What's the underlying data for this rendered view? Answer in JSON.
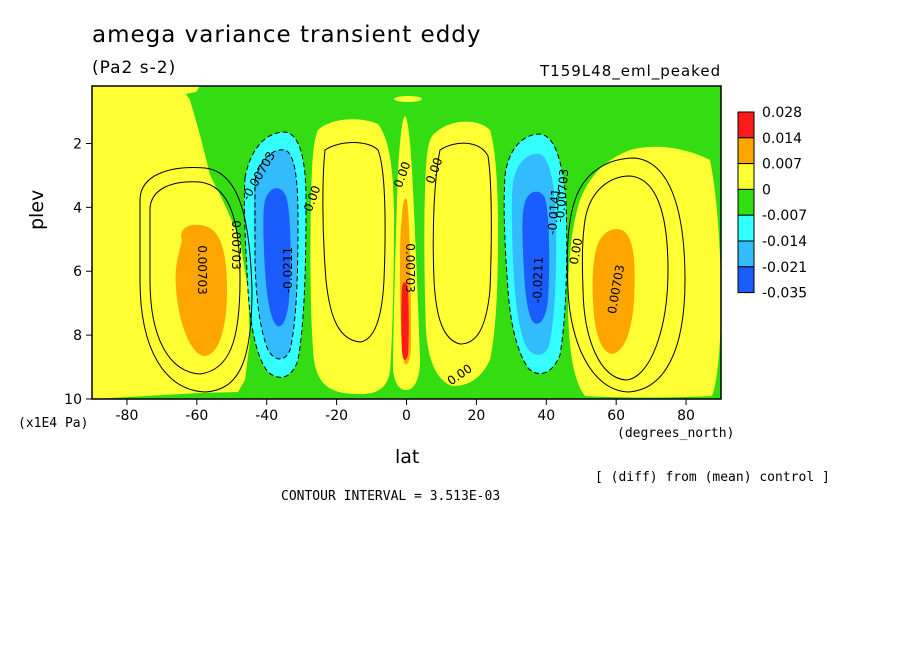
{
  "page": {
    "title": "amega variance transient eddy",
    "units": "(Pa2 s-2)",
    "run_name": "T159L48_eml_peaked",
    "y_unit": "(x1E4 Pa)",
    "x_unit": "(degrees_north)",
    "diff_note": "[ (diff) from (mean) control ]",
    "contour_interval": "CONTOUR INTERVAL = 3.513E-03"
  },
  "colors": {
    "red": "#ff1a1a",
    "orange": "#ffa500",
    "yellow": "#ffff33",
    "green": "#33dd11",
    "cyan": "#33ffff",
    "lightblue": "#33bbff",
    "blue": "#1a5cff"
  },
  "chart_data": {
    "type": "filled-contour",
    "xlabel": "lat",
    "ylabel": "plev",
    "xlim": [
      -90,
      90
    ],
    "ylim": [
      10,
      0.2
    ],
    "x_ticks": [
      "-80",
      "-60",
      "-40",
      "-20",
      "0",
      "20",
      "40",
      "60",
      "80"
    ],
    "y_ticks": [
      "2",
      "4",
      "6",
      "8",
      "10"
    ],
    "colorbar": {
      "labels": [
        "0.028",
        "0.014",
        "0.007",
        "0",
        "-0.007",
        "-0.014",
        "-0.021",
        "-0.035"
      ],
      "fills": [
        "red",
        "orange",
        "yellow",
        "green",
        "cyan",
        "lightblue",
        "blue"
      ]
    },
    "contour_labels": [
      "0.00703",
      "0.00703",
      "0.00703",
      "-0.00703",
      "-0.0211",
      "0.00",
      "0.00",
      "0.00",
      "-0.0211",
      "-0.0141",
      "-0.00703",
      "0.00",
      "0.00703",
      "0.00"
    ],
    "features": [
      {
        "lat": -59,
        "plev": 6.2,
        "value": 0.007
      },
      {
        "lat": -37,
        "plev": 5.5,
        "value": -0.021
      },
      {
        "lat": 0,
        "plev": 7.5,
        "value": 0.028
      },
      {
        "lat": 37,
        "plev": 5.5,
        "value": -0.021
      },
      {
        "lat": 60,
        "plev": 6.2,
        "value": 0.007
      }
    ]
  }
}
